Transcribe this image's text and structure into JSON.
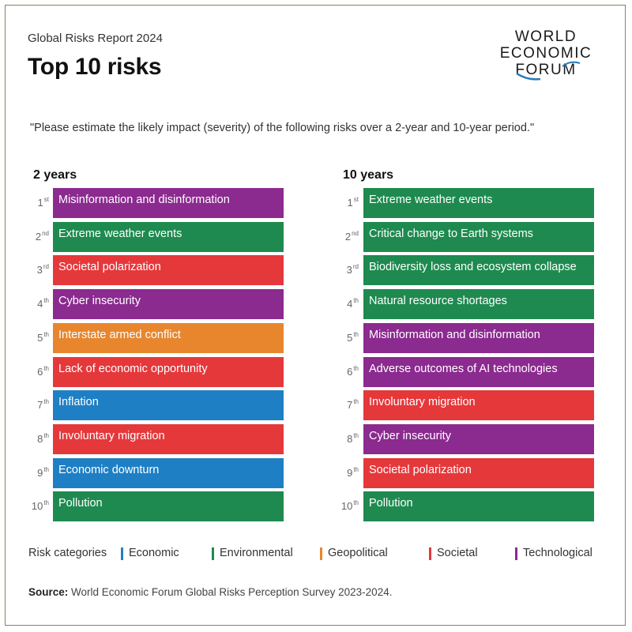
{
  "header": {
    "subtitle": "Global Risks Report 2024",
    "title": "Top 10 risks",
    "logo_lines": [
      "WORLD",
      "ECONOMIC",
      "FORUM"
    ]
  },
  "question": "\"Please estimate the likely impact (severity) of the following risks over a 2-year and 10-year period.\"",
  "colors": {
    "Economic": "#1f7fc4",
    "Environmental": "#1e8a4f",
    "Geopolitical": "#e8862e",
    "Societal": "#e5383b",
    "Technological": "#8b2a8f"
  },
  "chart_data": {
    "type": "table",
    "columns": [
      {
        "header": "2 years",
        "rows": [
          {
            "rank": "1",
            "suffix": "st",
            "label": "Misinformation and disinformation",
            "category": "Technological"
          },
          {
            "rank": "2",
            "suffix": "nd",
            "label": "Extreme weather events",
            "category": "Environmental"
          },
          {
            "rank": "3",
            "suffix": "rd",
            "label": "Societal polarization",
            "category": "Societal"
          },
          {
            "rank": "4",
            "suffix": "th",
            "label": "Cyber insecurity",
            "category": "Technological"
          },
          {
            "rank": "5",
            "suffix": "th",
            "label": "Interstate armed conflict",
            "category": "Geopolitical"
          },
          {
            "rank": "6",
            "suffix": "th",
            "label": "Lack of economic opportunity",
            "category": "Societal"
          },
          {
            "rank": "7",
            "suffix": "th",
            "label": "Inflation",
            "category": "Economic"
          },
          {
            "rank": "8",
            "suffix": "th",
            "label": "Involuntary migration",
            "category": "Societal"
          },
          {
            "rank": "9",
            "suffix": "th",
            "label": "Economic downturn",
            "category": "Economic"
          },
          {
            "rank": "10",
            "suffix": "th",
            "label": "Pollution",
            "category": "Environmental"
          }
        ]
      },
      {
        "header": "10 years",
        "rows": [
          {
            "rank": "1",
            "suffix": "st",
            "label": "Extreme weather events",
            "category": "Environmental"
          },
          {
            "rank": "2",
            "suffix": "nd",
            "label": "Critical change to Earth systems",
            "category": "Environmental"
          },
          {
            "rank": "3",
            "suffix": "rd",
            "label": "Biodiversity loss and ecosystem collapse",
            "category": "Environmental"
          },
          {
            "rank": "4",
            "suffix": "th",
            "label": "Natural resource shortages",
            "category": "Environmental"
          },
          {
            "rank": "5",
            "suffix": "th",
            "label": "Misinformation and disinformation",
            "category": "Technological"
          },
          {
            "rank": "6",
            "suffix": "th",
            "label": "Adverse outcomes of AI technologies",
            "category": "Technological"
          },
          {
            "rank": "7",
            "suffix": "th",
            "label": "Involuntary migration",
            "category": "Societal"
          },
          {
            "rank": "8",
            "suffix": "th",
            "label": "Cyber insecurity",
            "category": "Technological"
          },
          {
            "rank": "9",
            "suffix": "th",
            "label": "Societal polarization",
            "category": "Societal"
          },
          {
            "rank": "10",
            "suffix": "th",
            "label": "Pollution",
            "category": "Environmental"
          }
        ]
      }
    ],
    "legend": {
      "title": "Risk categories",
      "items": [
        "Economic",
        "Environmental",
        "Geopolitical",
        "Societal",
        "Technological"
      ]
    }
  },
  "source": {
    "label": "Source:",
    "text": "World Economic Forum Global Risks Perception Survey 2023-2024."
  }
}
